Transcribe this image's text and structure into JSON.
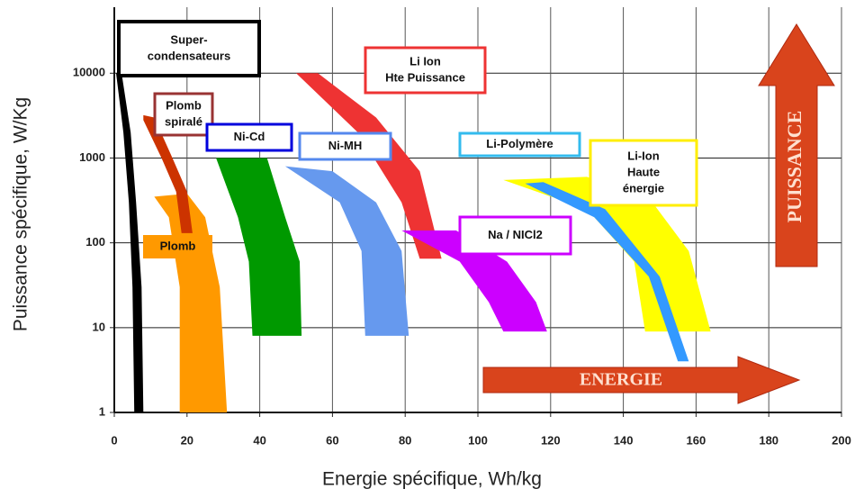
{
  "chart_data": {
    "type": "region",
    "x_label": "Energie spécifique, Wh/kg",
    "y_label": "Puissance spécifique,  W/Kg",
    "xlim": [
      0,
      200
    ],
    "xticks": [
      0,
      20,
      40,
      60,
      80,
      100,
      120,
      140,
      160,
      180,
      200
    ],
    "ylim": [
      1,
      60000
    ],
    "yticks": [
      1,
      10,
      100,
      1000,
      10000
    ],
    "log_y": true,
    "grid": true,
    "series": [
      {
        "name": [
          "Plomb"
        ],
        "color": "#ff9900",
        "x": [
          11,
          20,
          25,
          29,
          31,
          18,
          18,
          15
        ],
        "y": [
          350,
          380,
          200,
          30,
          1,
          1,
          30,
          200
        ]
      },
      {
        "name": [
          "Super-",
          "condensateurs"
        ],
        "color": "#000000",
        "x": [
          0.5,
          2.5,
          4,
          5,
          5.5,
          8,
          7.5,
          6,
          4.5,
          2
        ],
        "y": [
          10000,
          2000,
          300,
          30,
          1,
          1,
          30,
          300,
          2000,
          10000
        ]
      },
      {
        "name": [
          "Plomb",
          "spiralé"
        ],
        "color": "#cc3300",
        "x": [
          8,
          11,
          16,
          20,
          21.5,
          18.5,
          17,
          13,
          8
        ],
        "y": [
          3200,
          3000,
          1000,
          400,
          130,
          130,
          400,
          1000,
          2800
        ]
      },
      {
        "name": [
          "Ni-Cd"
        ],
        "color": "#009900",
        "x": [
          28,
          42,
          47,
          51,
          51.5,
          38,
          37,
          34
        ],
        "y": [
          1000,
          1000,
          200,
          60,
          8,
          8,
          60,
          200
        ]
      },
      {
        "name": [
          "Ni-MH"
        ],
        "color": "#6699ee",
        "x": [
          47,
          60,
          72,
          79,
          81,
          69,
          68,
          62
        ],
        "y": [
          800,
          700,
          300,
          80,
          8,
          8,
          80,
          300
        ]
      },
      {
        "name": [
          "Li Ion",
          "Hte Puissance"
        ],
        "color": "#ee3333",
        "x": [
          50,
          56,
          72,
          84,
          90,
          84,
          79,
          67
        ],
        "y": [
          10000,
          10000,
          3000,
          700,
          65,
          65,
          300,
          2000
        ]
      },
      {
        "name": [
          "Na / NICl2"
        ],
        "color": "#cc00ff",
        "x": [
          79,
          94,
          108,
          116,
          119,
          107,
          103,
          95
        ],
        "y": [
          140,
          140,
          60,
          20,
          9,
          9,
          20,
          60
        ]
      },
      {
        "name": [
          "Li-Ion",
          "Haute",
          "énergie"
        ],
        "color": "#ffff00",
        "x": [
          107,
          130,
          148,
          158,
          164,
          146,
          143,
          130
        ],
        "y": [
          550,
          600,
          300,
          80,
          9,
          9,
          60,
          250
        ]
      },
      {
        "name": [
          "Li-Polymère"
        ],
        "color": "#3399ff",
        "x": [
          113,
          118,
          135,
          150,
          158,
          155,
          147,
          132
        ],
        "y": [
          500,
          520,
          250,
          40,
          4,
          4,
          40,
          200
        ]
      }
    ],
    "annotations": [
      "ENERGIE",
      "PUISSANCE"
    ]
  }
}
